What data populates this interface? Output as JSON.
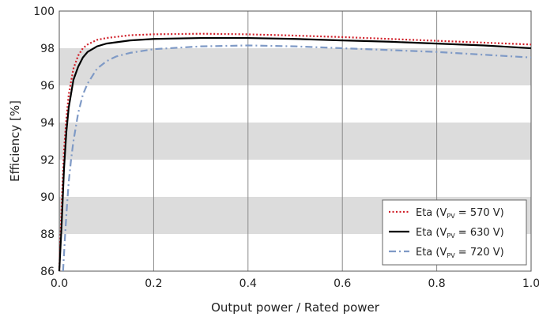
{
  "chart_data": {
    "type": "line",
    "xlabel": "Output power / Rated power",
    "ylabel": "Efficiency [%]",
    "xlim": [
      0,
      1.0
    ],
    "ylim": [
      86,
      100
    ],
    "x_ticks": [
      "0.0",
      "0.2",
      "0.4",
      "0.6",
      "0.8",
      "1.0"
    ],
    "y_ticks": [
      "86",
      "88",
      "90",
      "92",
      "94",
      "96",
      "98",
      "100"
    ],
    "background_bands": "alternating gray horizontal bands every 2%",
    "grid": "vertical lines at x ticks",
    "legend_position": "bottom-right",
    "series": [
      {
        "name": "Eta (VPV = 570 V)",
        "legend_prefix": "Eta (V",
        "legend_sub": "PV",
        "legend_suffix": " = 570 V)",
        "color": "#d0202a",
        "style": "dotted",
        "x": [
          0.0,
          0.005,
          0.01,
          0.015,
          0.02,
          0.03,
          0.04,
          0.05,
          0.06,
          0.08,
          0.1,
          0.15,
          0.2,
          0.3,
          0.4,
          0.5,
          0.6,
          0.7,
          0.8,
          0.9,
          1.0
        ],
        "y": [
          86.0,
          89.5,
          92.5,
          94.2,
          95.5,
          96.9,
          97.6,
          98.0,
          98.2,
          98.45,
          98.55,
          98.7,
          98.75,
          98.78,
          98.75,
          98.68,
          98.6,
          98.5,
          98.4,
          98.3,
          98.2
        ]
      },
      {
        "name": "Eta (VPV = 630 V)",
        "legend_prefix": "Eta (V",
        "legend_sub": "PV",
        "legend_suffix": " = 630 V)",
        "color": "#000000",
        "style": "solid",
        "x": [
          0.0,
          0.005,
          0.01,
          0.015,
          0.02,
          0.03,
          0.04,
          0.05,
          0.06,
          0.08,
          0.1,
          0.15,
          0.2,
          0.3,
          0.4,
          0.5,
          0.6,
          0.7,
          0.8,
          0.9,
          1.0
        ],
        "y": [
          86.0,
          88.5,
          91.5,
          93.5,
          94.8,
          96.3,
          97.0,
          97.5,
          97.8,
          98.1,
          98.25,
          98.42,
          98.5,
          98.55,
          98.55,
          98.5,
          98.42,
          98.35,
          98.25,
          98.15,
          98.0
        ]
      },
      {
        "name": "Eta (VPV = 720 V)",
        "legend_prefix": "Eta (V",
        "legend_sub": "PV",
        "legend_suffix": " = 720 V)",
        "color": "#7f9ac6",
        "style": "dashdot",
        "x": [
          0.008,
          0.012,
          0.016,
          0.02,
          0.025,
          0.03,
          0.04,
          0.05,
          0.06,
          0.08,
          0.1,
          0.12,
          0.15,
          0.2,
          0.3,
          0.4,
          0.5,
          0.6,
          0.7,
          0.8,
          0.9,
          1.0
        ],
        "y": [
          86.0,
          87.8,
          89.4,
          90.8,
          92.0,
          93.0,
          94.5,
          95.5,
          96.1,
          96.9,
          97.3,
          97.55,
          97.75,
          97.95,
          98.1,
          98.15,
          98.1,
          98.0,
          97.9,
          97.8,
          97.65,
          97.5
        ]
      }
    ]
  }
}
